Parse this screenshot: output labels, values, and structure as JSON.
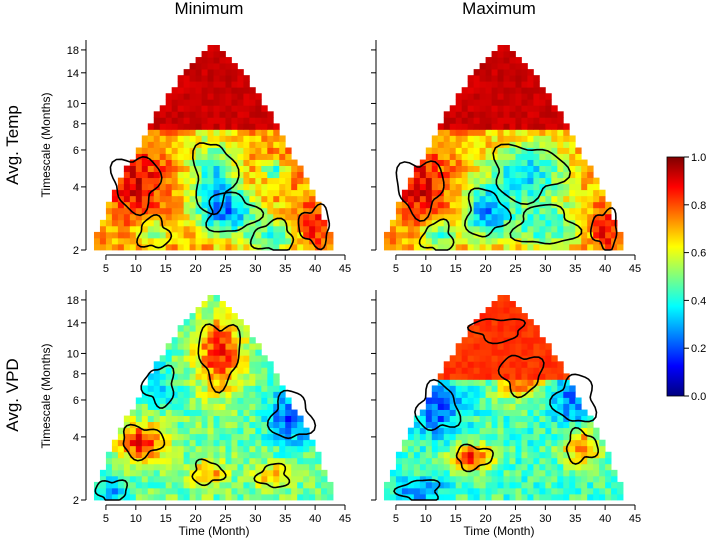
{
  "chart_data": {
    "type": "heatmap",
    "column_titles": [
      "Minimum",
      "Maximum"
    ],
    "row_titles": [
      "Avg. Temp",
      "Avg. VPD"
    ],
    "xlabel": "Time (Month)",
    "ylabel": "Timescale (Months)",
    "x_ticks": [
      5,
      10,
      15,
      20,
      25,
      30,
      35,
      40,
      45
    ],
    "y_ticks": [
      2,
      4,
      6,
      8,
      10,
      14,
      18
    ],
    "xlim": [
      2,
      45
    ],
    "ylim": [
      2,
      19
    ],
    "y_scale": "log",
    "colorbar": {
      "ticks": [
        "0.0",
        "0.2",
        "0.4",
        "0.6",
        "0.8",
        "1.0"
      ],
      "range": [
        0,
        1
      ],
      "colormap": [
        "#00007f",
        "#0000ff",
        "#007fff",
        "#00ffff",
        "#7fff7f",
        "#ffff00",
        "#ff7f00",
        "#ff0000",
        "#7f0000"
      ]
    },
    "panels": [
      {
        "row": "Avg. Temp",
        "column": "Minimum",
        "top_band_value": 0.95,
        "base": 0.72,
        "blobs": [
          {
            "t": 10,
            "s": 4.2,
            "v": 0.9,
            "rt": 4.5,
            "rs": 0.35
          },
          {
            "t": 23,
            "s": 4.5,
            "v": 0.38,
            "rt": 4,
            "rs": 0.45
          },
          {
            "t": 26,
            "s": 3.0,
            "v": 0.35,
            "rt": 5,
            "rs": 0.25
          },
          {
            "t": 13,
            "s": 2.4,
            "v": 0.55,
            "rt": 3,
            "rs": 0.2
          },
          {
            "t": 33,
            "s": 2.3,
            "v": 0.45,
            "rt": 4,
            "rs": 0.2
          },
          {
            "t": 40,
            "s": 2.6,
            "v": 0.85,
            "rt": 3,
            "rs": 0.25
          },
          {
            "t": 33,
            "s": 4.8,
            "v": 0.4,
            "rt": 2,
            "rs": 0.1
          }
        ]
      },
      {
        "row": "Avg. Temp",
        "column": "Maximum",
        "top_band_value": 0.95,
        "base": 0.72,
        "blobs": [
          {
            "t": 9,
            "s": 4.0,
            "v": 0.9,
            "rt": 4.5,
            "rs": 0.35
          },
          {
            "t": 27,
            "s": 4.7,
            "v": 0.35,
            "rt": 7,
            "rs": 0.35
          },
          {
            "t": 20,
            "s": 3.0,
            "v": 0.32,
            "rt": 4,
            "rs": 0.3
          },
          {
            "t": 30,
            "s": 2.6,
            "v": 0.42,
            "rt": 6,
            "rs": 0.25
          },
          {
            "t": 12,
            "s": 2.3,
            "v": 0.45,
            "rt": 3,
            "rs": 0.2
          },
          {
            "t": 40,
            "s": 2.5,
            "v": 0.88,
            "rt": 2.5,
            "rs": 0.25
          }
        ]
      },
      {
        "row": "Avg. VPD",
        "column": "Minimum",
        "top_band_value": 0.55,
        "base": 0.48,
        "blobs": [
          {
            "t": 24,
            "s": 10.0,
            "v": 0.85,
            "rt": 4,
            "rs": 0.4
          },
          {
            "t": 11,
            "s": 3.8,
            "v": 0.88,
            "rt": 4,
            "rs": 0.2
          },
          {
            "t": 22,
            "s": 2.7,
            "v": 0.75,
            "rt": 3,
            "rs": 0.15
          },
          {
            "t": 36,
            "s": 5.0,
            "v": 0.18,
            "rt": 4,
            "rs": 0.3
          },
          {
            "t": 33,
            "s": 2.6,
            "v": 0.7,
            "rt": 3,
            "rs": 0.15
          },
          {
            "t": 14,
            "s": 7.0,
            "v": 0.35,
            "rt": 3,
            "rs": 0.25
          },
          {
            "t": 6,
            "s": 2.2,
            "v": 0.3,
            "rt": 3,
            "rs": 0.15
          }
        ]
      },
      {
        "row": "Avg. VPD",
        "column": "Maximum",
        "top_band_value": 0.85,
        "base": 0.44,
        "blobs": [
          {
            "t": 26,
            "s": 8.0,
            "v": 0.85,
            "rt": 4,
            "rs": 0.25
          },
          {
            "t": 18,
            "s": 3.2,
            "v": 0.85,
            "rt": 3.5,
            "rs": 0.15
          },
          {
            "t": 36,
            "s": 3.6,
            "v": 0.8,
            "rt": 3,
            "rs": 0.2
          },
          {
            "t": 12,
            "s": 5.5,
            "v": 0.2,
            "rt": 4,
            "rs": 0.3
          },
          {
            "t": 35,
            "s": 6.0,
            "v": 0.22,
            "rt": 4,
            "rs": 0.3
          },
          {
            "t": 9,
            "s": 2.2,
            "v": 0.25,
            "rt": 4,
            "rs": 0.15
          },
          {
            "t": 22,
            "s": 13.0,
            "v": 0.45,
            "rt": 5,
            "rs": 0.15
          }
        ]
      }
    ]
  }
}
